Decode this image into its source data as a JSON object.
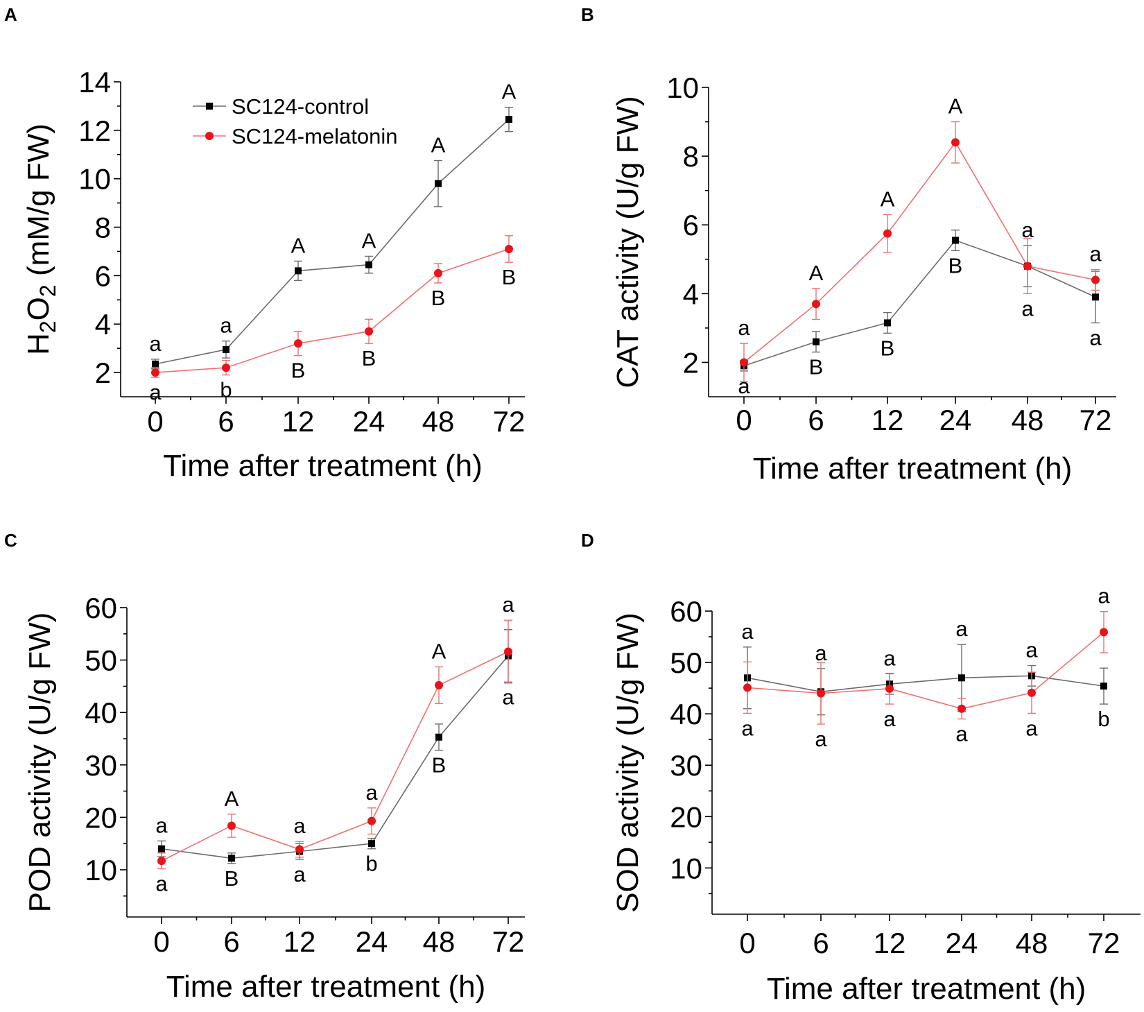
{
  "figure_title": "",
  "colors": {
    "control": "#000000",
    "melatonin": "#e8141b",
    "control_line": "#6b6b6b",
    "melatonin_line": "#f07070"
  },
  "legend": {
    "control": "SC124-control",
    "melatonin": "SC124-melatonin"
  },
  "chart_data": [
    {
      "panel": "A",
      "type": "line",
      "categories": [
        "0",
        "6",
        "12",
        "24",
        "48",
        "72"
      ],
      "xlabel": "Time after treatment (h)",
      "ylabel_parts": [
        "H",
        "2",
        "O",
        "2",
        " (mM/g FW)"
      ],
      "ylim": [
        1.0,
        14.0
      ],
      "yticks": [
        2,
        4,
        6,
        8,
        10,
        12,
        14
      ],
      "series": [
        {
          "name": "SC124-control",
          "values": [
            2.35,
            2.95,
            6.2,
            6.45,
            9.8,
            12.45
          ],
          "errors": [
            0.2,
            0.35,
            0.4,
            0.35,
            0.95,
            0.5
          ],
          "labels": [
            "a",
            "a",
            "A",
            "A",
            "A",
            "A"
          ]
        },
        {
          "name": "SC124-melatonin",
          "values": [
            2.0,
            2.2,
            3.2,
            3.7,
            6.1,
            7.1
          ],
          "errors": [
            0.2,
            0.3,
            0.5,
            0.5,
            0.4,
            0.55
          ],
          "labels": [
            "a",
            "b",
            "B",
            "B",
            "B",
            "B"
          ]
        }
      ]
    },
    {
      "panel": "B",
      "type": "line",
      "categories": [
        "0",
        "6",
        "12",
        "24",
        "48",
        "72"
      ],
      "xlabel": "Time after treatment (h)",
      "ylabel": "CAT activity (U/g FW)",
      "ylim": [
        1.0,
        10.0
      ],
      "yticks": [
        2,
        4,
        6,
        8,
        10
      ],
      "series": [
        {
          "name": "SC124-control",
          "values": [
            1.9,
            2.6,
            3.15,
            5.55,
            4.8,
            3.9
          ],
          "errors": [
            0.15,
            0.3,
            0.3,
            0.3,
            0.6,
            0.75
          ],
          "labels": [
            "a",
            "B",
            "B",
            "B",
            "a",
            "a"
          ]
        },
        {
          "name": "SC124-melatonin",
          "values": [
            2.0,
            3.7,
            5.75,
            8.4,
            4.8,
            4.4
          ],
          "errors": [
            0.55,
            0.45,
            0.55,
            0.6,
            0.8,
            0.3
          ],
          "labels": [
            "a",
            "A",
            "A",
            "A",
            "a",
            "a"
          ]
        }
      ]
    },
    {
      "panel": "C",
      "type": "line",
      "categories": [
        "0",
        "6",
        "12",
        "24",
        "48",
        "72"
      ],
      "xlabel": "Time after treatment (h)",
      "ylabel": "POD activity (U/g FW)",
      "ylim": [
        1,
        60
      ],
      "yticks": [
        10,
        20,
        30,
        40,
        50,
        60
      ],
      "series": [
        {
          "name": "SC124-control",
          "values": [
            14.0,
            12.2,
            13.5,
            15.0,
            35.3,
            50.8
          ],
          "errors": [
            1.5,
            1.0,
            1.5,
            1.0,
            2.5,
            5.0
          ],
          "labels": [
            "a",
            "B",
            "a",
            "b",
            "B",
            "a"
          ]
        },
        {
          "name": "SC124-melatonin",
          "values": [
            11.7,
            18.4,
            13.9,
            19.3,
            45.2,
            51.6
          ],
          "errors": [
            1.5,
            2.2,
            1.5,
            2.5,
            3.5,
            6.0
          ],
          "labels": [
            "a",
            "A",
            "a",
            "a",
            "A",
            "a"
          ]
        }
      ]
    },
    {
      "panel": "D",
      "type": "line",
      "categories": [
        "0",
        "6",
        "12",
        "24",
        "48",
        "72"
      ],
      "xlabel": "Time after treatment (h)",
      "ylabel": "SOD activity (U/g FW)",
      "ylim": [
        1,
        60
      ],
      "yticks": [
        10,
        20,
        30,
        40,
        50,
        60
      ],
      "series": [
        {
          "name": "SC124-control",
          "values": [
            47.0,
            44.3,
            45.8,
            47.0,
            47.4,
            45.4
          ],
          "errors": [
            6.0,
            4.5,
            2.0,
            6.5,
            2.0,
            3.5
          ],
          "labels": [
            "a",
            "a",
            "a",
            "a",
            "a",
            "b"
          ]
        },
        {
          "name": "SC124-melatonin",
          "values": [
            45.1,
            44.0,
            44.9,
            41.0,
            44.1,
            55.9
          ],
          "errors": [
            5.0,
            6.0,
            3.0,
            2.0,
            4.0,
            4.0
          ],
          "labels": [
            "a",
            "a",
            "a",
            "a",
            "a",
            "a"
          ]
        }
      ]
    }
  ]
}
